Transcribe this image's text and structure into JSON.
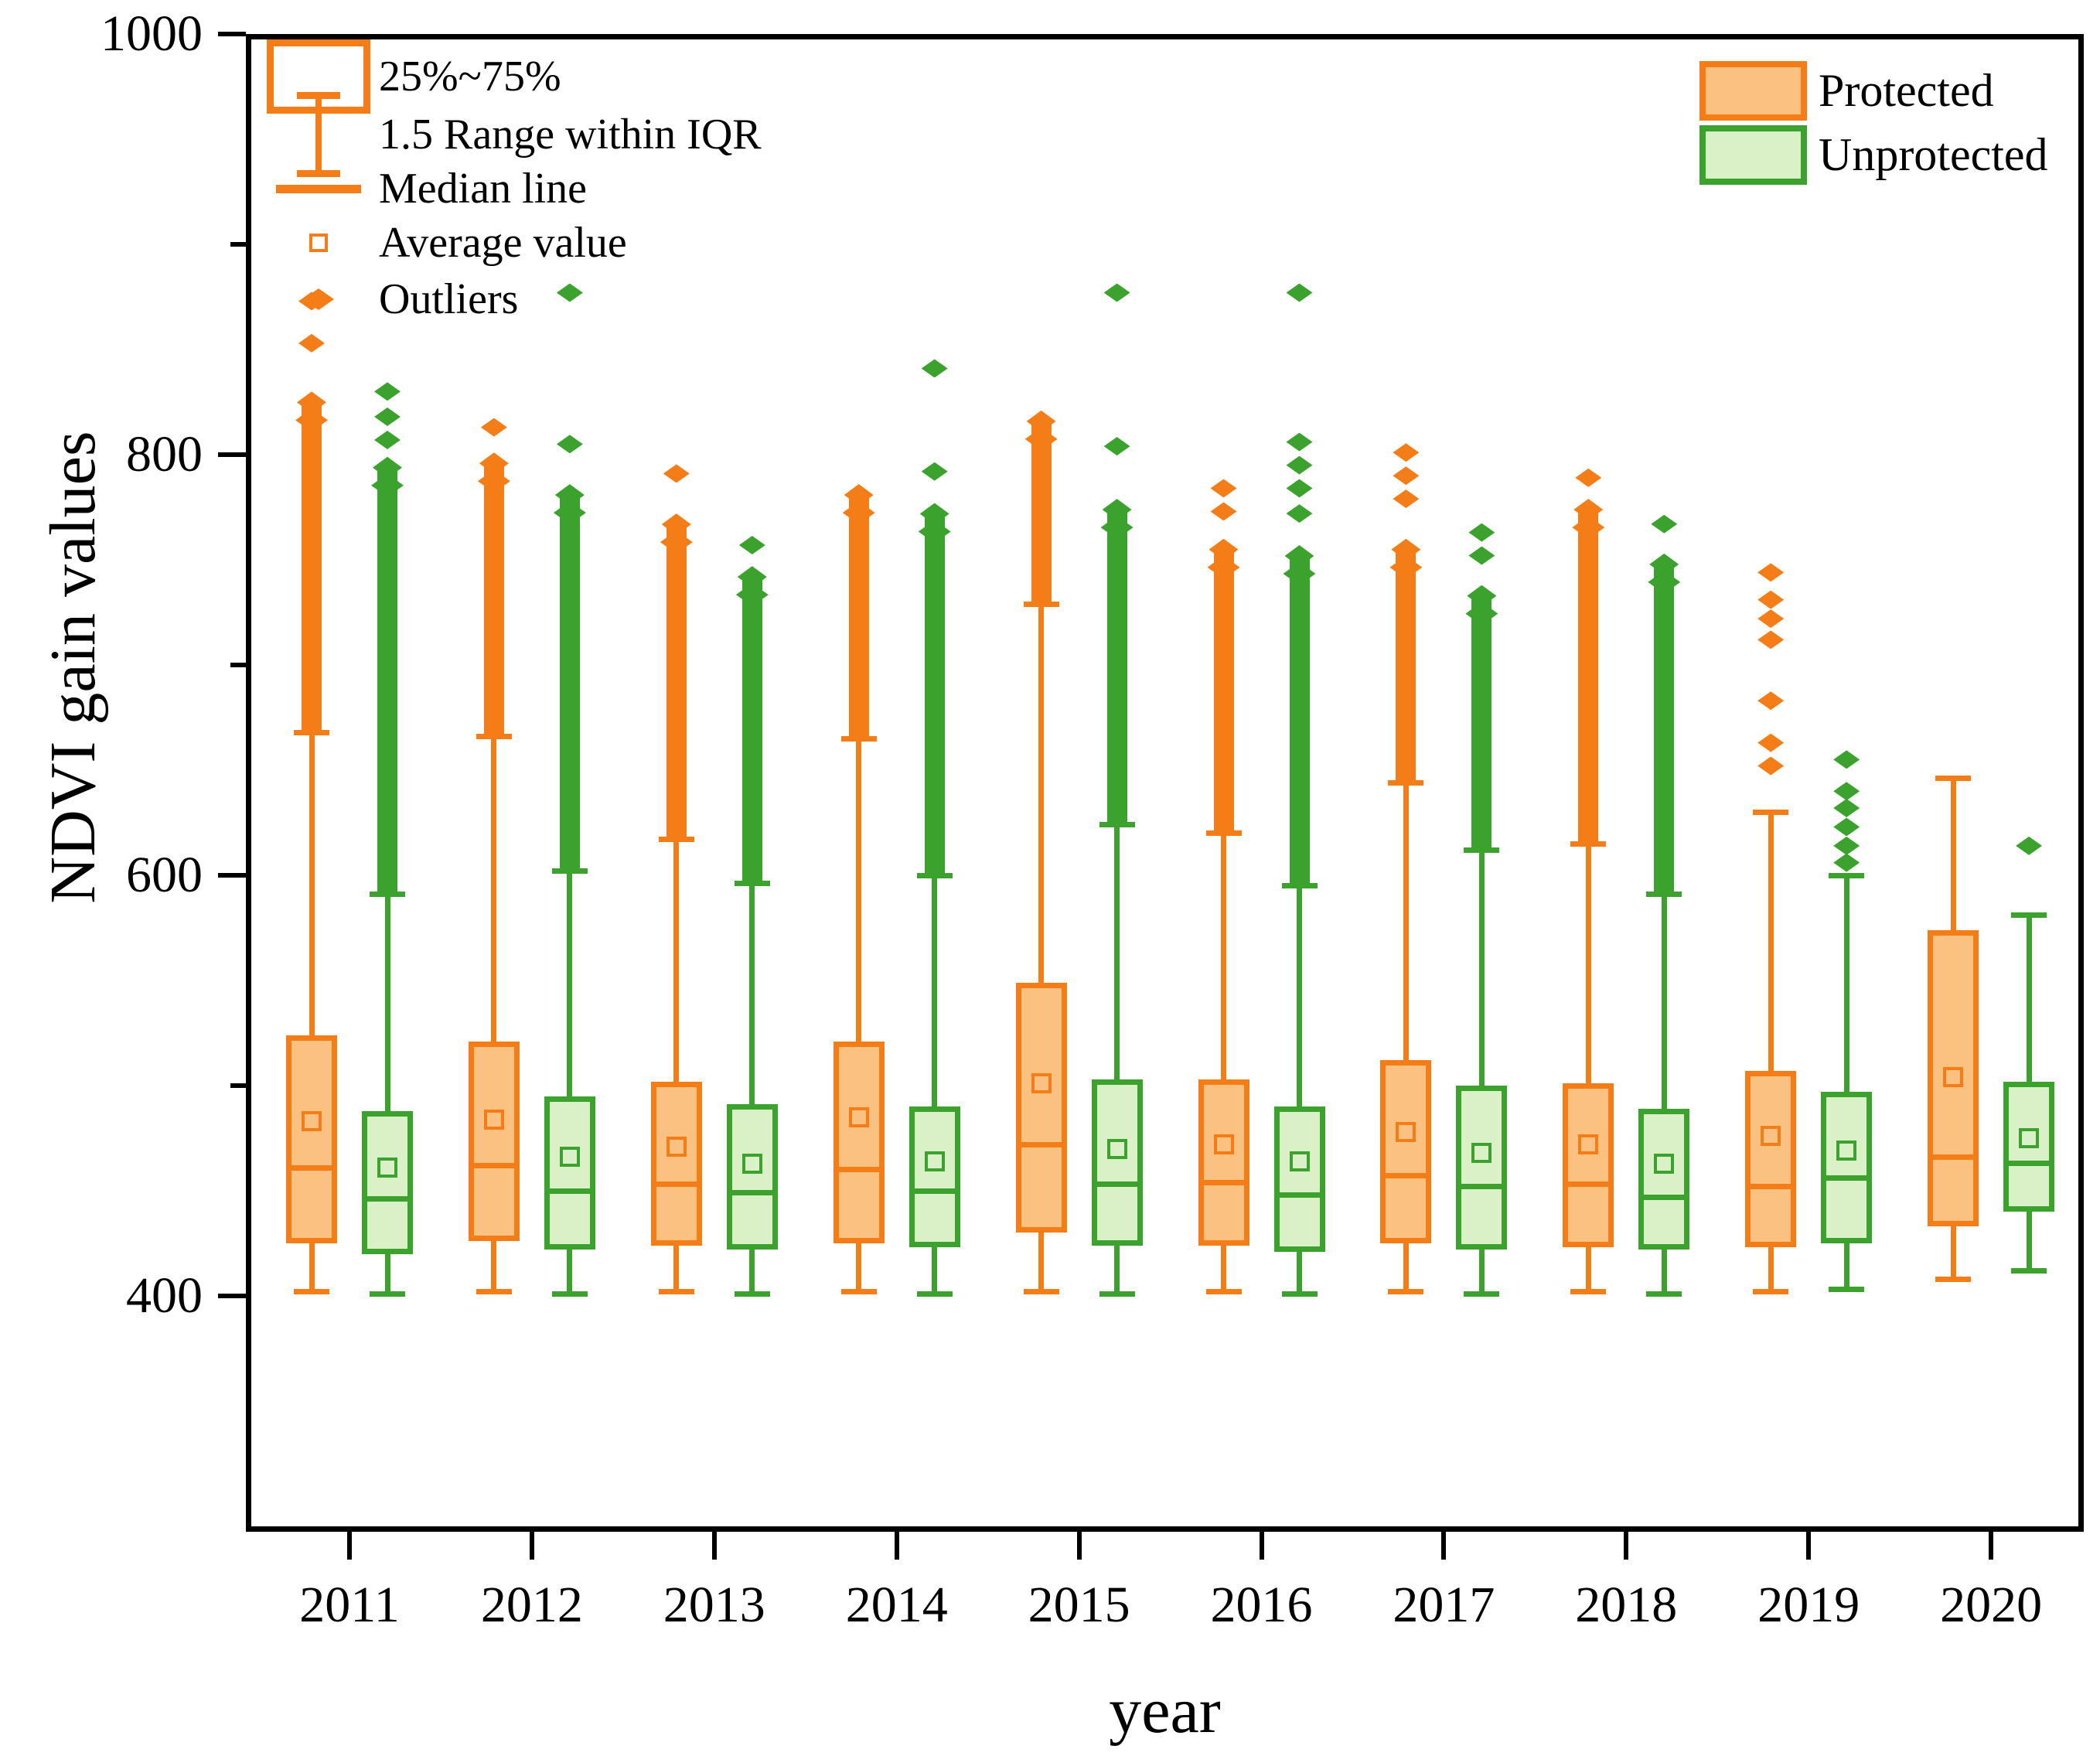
{
  "figure": {
    "background": "#FFFFFF",
    "axis_color": "#000000"
  },
  "chart_data": {
    "type": "box",
    "title": "",
    "xlabel": "year",
    "ylabel": "NDVI gain values",
    "ylim": [
      288,
      1000
    ],
    "yticks_major": [
      1000,
      800,
      600,
      400
    ],
    "yticks_minor": [
      900,
      700,
      500
    ],
    "grid": "off",
    "legend_position": "top-right",
    "categories": [
      "2011",
      "2012",
      "2013",
      "2014",
      "2015",
      "2016",
      "2017",
      "2018",
      "2019",
      "2020"
    ],
    "style_legend": [
      {
        "symbol": "box",
        "label": "25%~75%"
      },
      {
        "symbol": "whisker",
        "label": "1.5 Range within IQR"
      },
      {
        "symbol": "median-line",
        "label": "Median line"
      },
      {
        "symbol": "square",
        "label": "Average value"
      },
      {
        "symbol": "diamond",
        "label": "Outliers"
      }
    ],
    "series": [
      {
        "name": "Protected",
        "stroke": "#F57D17",
        "fill": "#FBC180",
        "boxes": [
          {
            "year": "2011",
            "whisker_low": 402,
            "q1": 425,
            "median": 461,
            "mean": 483,
            "q3": 524,
            "whisker_high": 668,
            "outlier_column_top": 830,
            "outliers": [
              873,
              853
            ]
          },
          {
            "year": "2012",
            "whisker_low": 402,
            "q1": 426,
            "median": 462,
            "mean": 484,
            "q3": 521,
            "whisker_high": 666,
            "outlier_column_top": 801,
            "outliers": [
              813
            ]
          },
          {
            "year": "2013",
            "whisker_low": 402,
            "q1": 424,
            "median": 453,
            "mean": 471,
            "q3": 502,
            "whisker_high": 617,
            "outlier_column_top": 772,
            "outliers": [
              791
            ]
          },
          {
            "year": "2014",
            "whisker_low": 402,
            "q1": 425,
            "median": 460,
            "mean": 485,
            "q3": 521,
            "whisker_high": 665,
            "outlier_column_top": 786,
            "outliers": []
          },
          {
            "year": "2015",
            "whisker_low": 402,
            "q1": 430,
            "median": 472,
            "mean": 501,
            "q3": 549,
            "whisker_high": 729,
            "outlier_column_top": 821,
            "outliers": []
          },
          {
            "year": "2016",
            "whisker_low": 402,
            "q1": 424,
            "median": 454,
            "mean": 472,
            "q3": 503,
            "whisker_high": 620,
            "outlier_column_top": 760,
            "outliers": [
              784,
              773
            ]
          },
          {
            "year": "2017",
            "whisker_low": 402,
            "q1": 425,
            "median": 457,
            "mean": 478,
            "q3": 512,
            "whisker_high": 644,
            "outlier_column_top": 760,
            "outliers": [
              801,
              790,
              779
            ]
          },
          {
            "year": "2018",
            "whisker_low": 402,
            "q1": 423,
            "median": 453,
            "mean": 472,
            "q3": 501,
            "whisker_high": 615,
            "outlier_column_top": 779,
            "outliers": [
              789
            ]
          },
          {
            "year": "2019",
            "whisker_low": 402,
            "q1": 423,
            "median": 452,
            "mean": 476,
            "q3": 507,
            "whisker_high": 630,
            "outlier_column_top": null,
            "outliers": [
              744,
              731,
              722,
              712,
              683,
              663,
              652
            ]
          },
          {
            "year": "2020",
            "whisker_low": 408,
            "q1": 433,
            "median": 466,
            "mean": 504,
            "q3": 574,
            "whisker_high": 646,
            "outlier_column_top": null,
            "outliers": []
          }
        ]
      },
      {
        "name": "Unprotected",
        "stroke": "#3BA32D",
        "fill": "#DAF0C6",
        "boxes": [
          {
            "year": "2011",
            "whisker_low": 401,
            "q1": 420,
            "median": 446,
            "mean": 461,
            "q3": 488,
            "whisker_high": 591,
            "outlier_column_top": 799,
            "outliers": [
              830,
              818,
              807
            ]
          },
          {
            "year": "2012",
            "whisker_low": 401,
            "q1": 422,
            "median": 450,
            "mean": 466,
            "q3": 495,
            "whisker_high": 602,
            "outlier_column_top": 786,
            "outliers": [
              877,
              805
            ]
          },
          {
            "year": "2013",
            "whisker_low": 401,
            "q1": 422,
            "median": 449,
            "mean": 463,
            "q3": 491,
            "whisker_high": 596,
            "outlier_column_top": 747,
            "outliers": [
              757
            ]
          },
          {
            "year": "2014",
            "whisker_low": 401,
            "q1": 423,
            "median": 450,
            "mean": 464,
            "q3": 490,
            "whisker_high": 600,
            "outlier_column_top": 777,
            "outliers": [
              841,
              792
            ]
          },
          {
            "year": "2015",
            "whisker_low": 401,
            "q1": 424,
            "median": 453,
            "mean": 470,
            "q3": 503,
            "whisker_high": 624,
            "outlier_column_top": 779,
            "outliers": [
              877,
              804
            ]
          },
          {
            "year": "2016",
            "whisker_low": 401,
            "q1": 421,
            "median": 448,
            "mean": 464,
            "q3": 490,
            "whisker_high": 595,
            "outlier_column_top": 757,
            "outliers": [
              877,
              806,
              795,
              784,
              772
            ]
          },
          {
            "year": "2017",
            "whisker_low": 401,
            "q1": 422,
            "median": 452,
            "mean": 468,
            "q3": 500,
            "whisker_high": 612,
            "outlier_column_top": 738,
            "outliers": [
              763,
              752
            ]
          },
          {
            "year": "2018",
            "whisker_low": 401,
            "q1": 422,
            "median": 447,
            "mean": 463,
            "q3": 489,
            "whisker_high": 591,
            "outlier_column_top": 753,
            "outliers": [
              767
            ]
          },
          {
            "year": "2019",
            "whisker_low": 403,
            "q1": 425,
            "median": 456,
            "mean": 469,
            "q3": 497,
            "whisker_high": 600,
            "outlier_column_top": null,
            "outliers": [
              655,
              640,
              632,
              623,
              614,
              606
            ]
          },
          {
            "year": "2020",
            "whisker_low": 412,
            "q1": 440,
            "median": 463,
            "mean": 475,
            "q3": 502,
            "whisker_high": 581,
            "outlier_column_top": null,
            "outliers": [
              614
            ]
          }
        ]
      }
    ]
  }
}
